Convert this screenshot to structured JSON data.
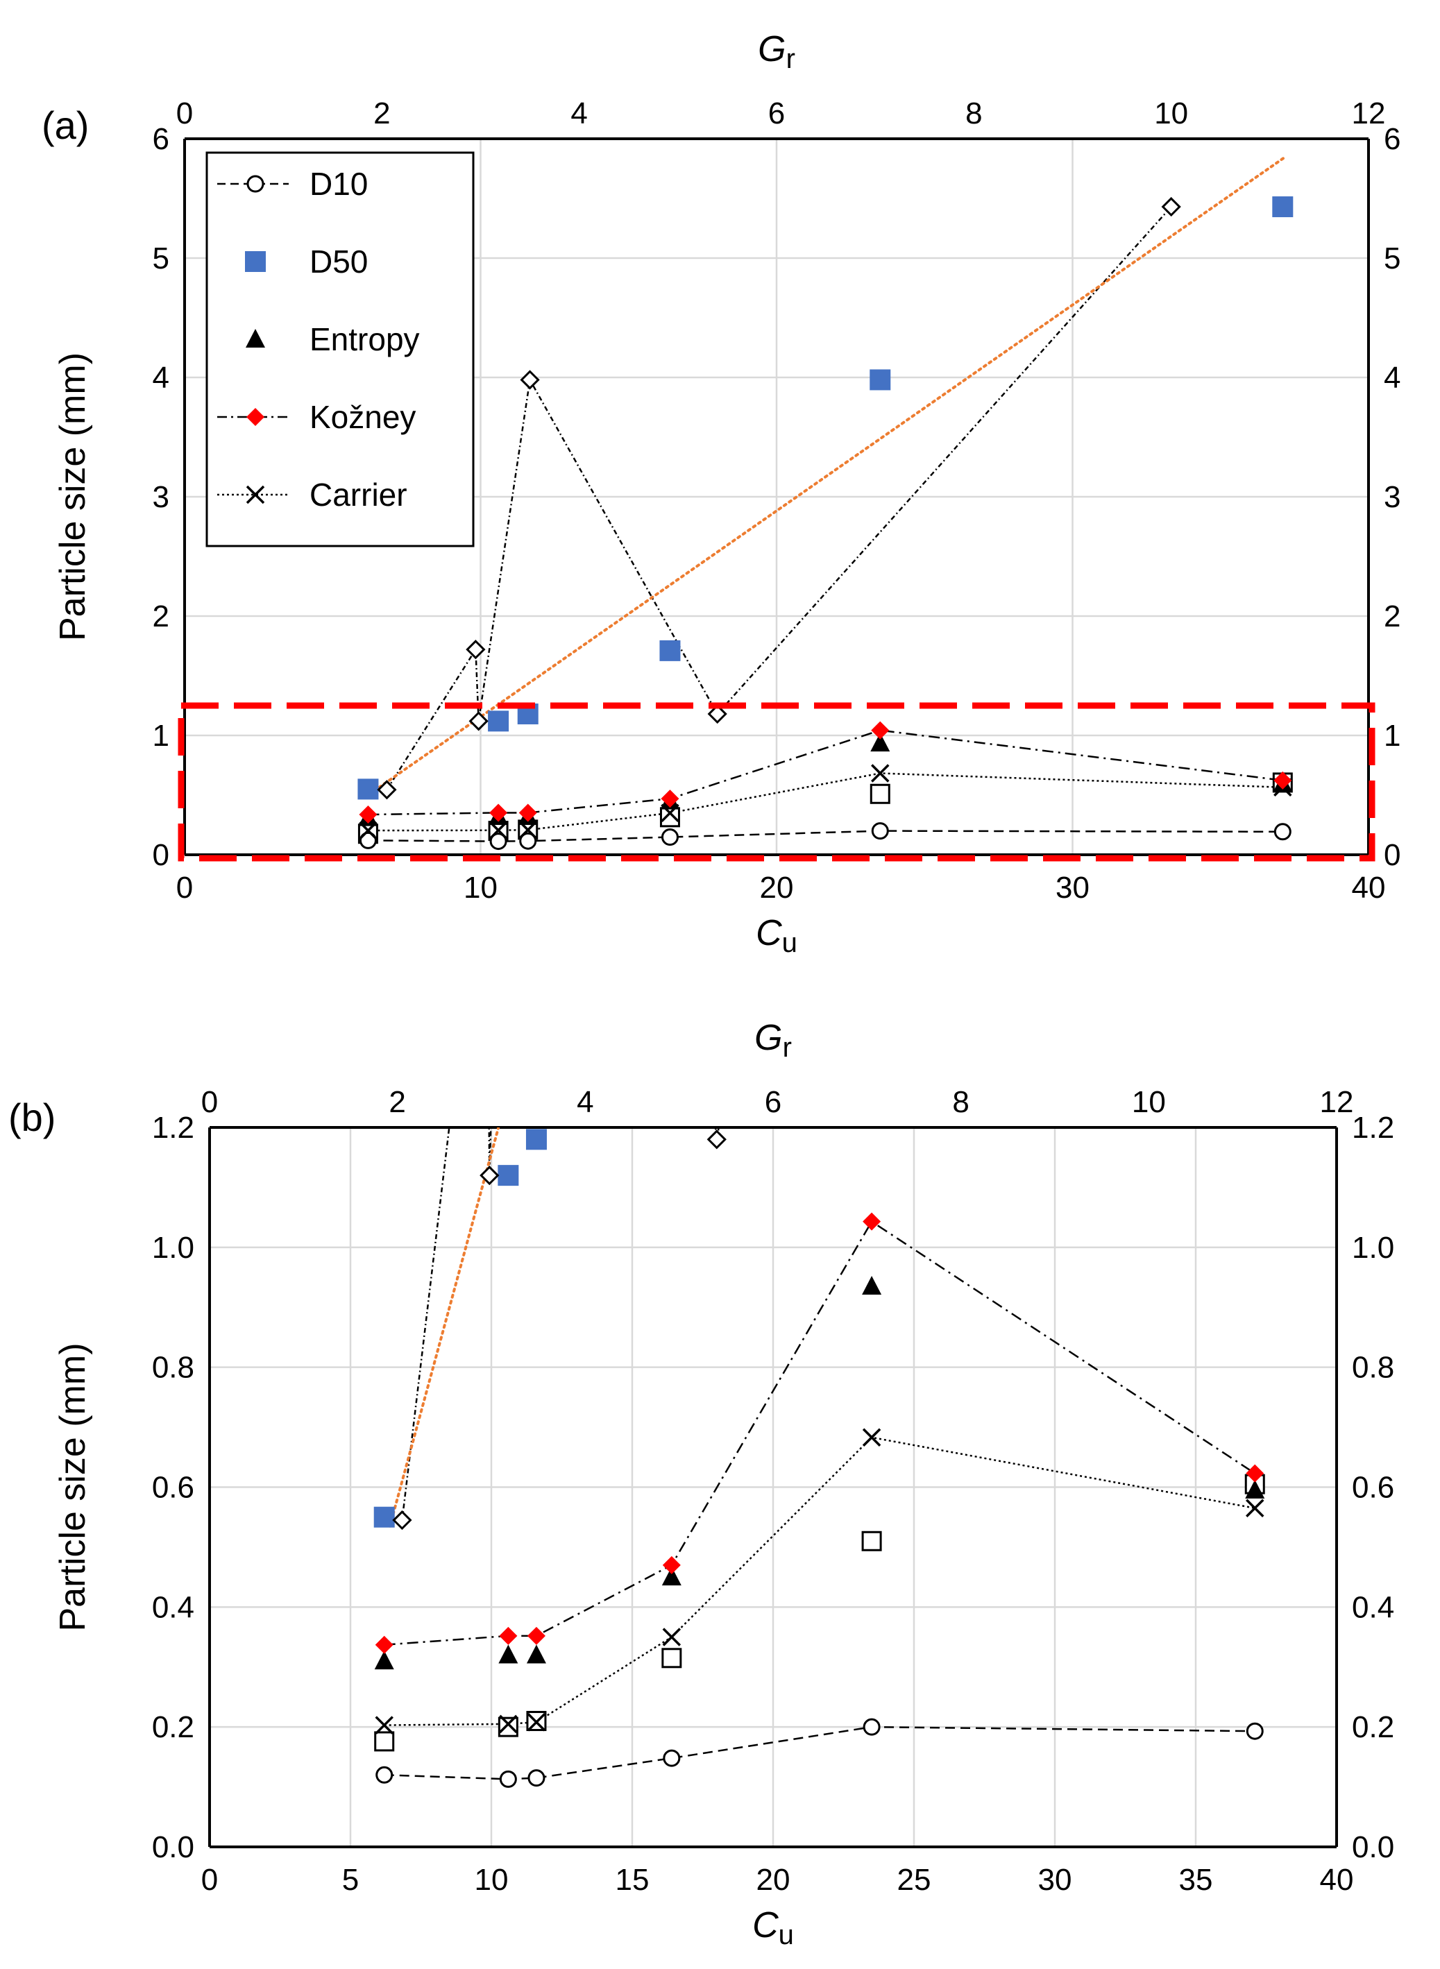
{
  "chart_data": [
    {
      "panel": "a",
      "panel_label": "(a)",
      "type": "line",
      "ylabel": "Particle size (mm)",
      "xlabel_main": "C",
      "xlabel_sub": "u",
      "x2label_main": "G",
      "x2label_sub": "r",
      "xlim": [
        0,
        40
      ],
      "x2lim": [
        0,
        12
      ],
      "ylim": [
        0,
        6
      ],
      "xticks": [
        0,
        10,
        20,
        30,
        40
      ],
      "x2ticks": [
        0,
        2,
        4,
        6,
        8,
        10,
        12
      ],
      "yticks": [
        "0",
        "1",
        "2",
        "3",
        "4",
        "5",
        "6"
      ],
      "ytick_values": [
        0,
        1,
        2,
        3,
        4,
        5,
        6
      ],
      "grid": true,
      "legend_position": "top-left",
      "legend": [
        {
          "key": "d10",
          "label": "D10"
        },
        {
          "key": "d50",
          "label": "D50"
        },
        {
          "key": "entropy",
          "label": "Entropy"
        },
        {
          "key": "kozney",
          "label": "Kožney"
        },
        {
          "key": "carrier",
          "label": "Carrier"
        }
      ],
      "highlight_box": {
        "x_range": [
          0,
          40
        ],
        "y_range": [
          0,
          1.25
        ],
        "color": "#ff0000"
      }
    },
    {
      "panel": "b",
      "panel_label": "(b)",
      "type": "line",
      "ylabel": "Particle size (mm)",
      "xlabel_main": "C",
      "xlabel_sub": "u",
      "x2label_main": "G",
      "x2label_sub": "r",
      "xlim": [
        0,
        40
      ],
      "x2lim": [
        0,
        12
      ],
      "ylim": [
        0,
        1.2
      ],
      "xticks": [
        0,
        5,
        10,
        15,
        20,
        25,
        30,
        35,
        40
      ],
      "x2ticks": [
        0,
        2,
        4,
        6,
        8,
        10,
        12
      ],
      "yticks": [
        "0.0",
        "0.2",
        "0.4",
        "0.6",
        "0.8",
        "1.0",
        "1.2"
      ],
      "ytick_values": [
        0,
        0.2,
        0.4,
        0.6,
        0.8,
        1.0,
        1.2
      ],
      "grid": true
    }
  ],
  "series": {
    "d10": {
      "name": "D10",
      "axis": "Cu",
      "x": [
        6.2,
        10.6,
        11.6,
        16.4,
        23.5,
        37.1
      ],
      "y": [
        0.12,
        0.113,
        0.115,
        0.148,
        0.2,
        0.193
      ]
    },
    "d50": {
      "name": "D50",
      "axis": "Cu",
      "x": [
        6.2,
        10.6,
        11.6,
        16.4,
        23.5,
        37.1
      ],
      "y": [
        0.55,
        1.12,
        1.18,
        1.71,
        3.98,
        5.43
      ]
    },
    "entropy": {
      "name": "Entropy",
      "axis": "Cu",
      "x": [
        6.2,
        10.6,
        11.6,
        16.4,
        23.5,
        37.1
      ],
      "y": [
        0.31,
        0.32,
        0.32,
        0.45,
        0.935,
        0.595
      ]
    },
    "kozney": {
      "name": "Kožney",
      "axis": "Cu",
      "x": [
        6.2,
        10.6,
        11.6,
        16.4,
        23.5,
        37.1
      ],
      "y": [
        0.337,
        0.352,
        0.352,
        0.47,
        1.043,
        0.623
      ]
    },
    "carrier": {
      "name": "Carrier",
      "axis": "Cu",
      "x": [
        6.2,
        10.6,
        11.6,
        16.4,
        23.5,
        37.1
      ],
      "y": [
        0.203,
        0.205,
        0.208,
        0.35,
        0.683,
        0.565
      ]
    },
    "open_square": {
      "name": "",
      "axis": "Cu",
      "x": [
        6.2,
        10.6,
        11.6,
        16.4,
        23.5,
        37.1
      ],
      "y": [
        0.176,
        0.2,
        0.21,
        0.315,
        0.51,
        0.605
      ]
    },
    "gr_diamond": {
      "name": "",
      "axis": "Gr",
      "x": [
        2.05,
        2.95,
        2.98,
        3.5,
        5.4,
        10.0
      ],
      "y": [
        0.545,
        1.72,
        1.12,
        3.98,
        1.18,
        5.43
      ]
    },
    "trendline": {
      "name": "",
      "axis": "Cu",
      "x": [
        6.4,
        37.2
      ],
      "y": [
        0.535,
        5.85
      ]
    }
  },
  "colors": {
    "d50": "#4472c4",
    "kozney": "#ff0000",
    "trendline": "#ed7d31",
    "highlight": "#ff0000",
    "grid": "#d9d9d9",
    "axis": "#000000"
  }
}
